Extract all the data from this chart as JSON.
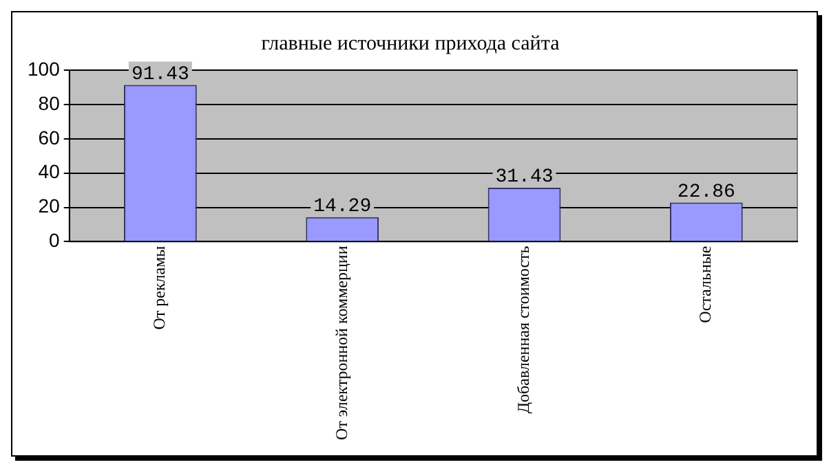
{
  "chart_data": {
    "type": "bar",
    "title": "главные источники прихода сайта",
    "categories": [
      "От рекламы",
      "От электронной коммерции",
      "Добавленная стоимость",
      "Остальные"
    ],
    "values": [
      91.43,
      14.29,
      31.43,
      22.86
    ],
    "color": "#9999ff",
    "ylim": [
      0,
      100
    ],
    "yticks": [
      0,
      20,
      40,
      60,
      80,
      100
    ],
    "grid": "y",
    "data_labels": true,
    "legend": false
  }
}
